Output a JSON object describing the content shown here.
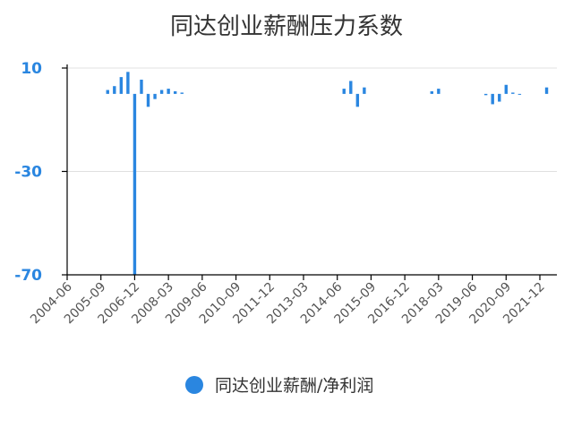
{
  "chart_data": {
    "type": "bar",
    "title": "同达创业薪酬压力系数",
    "xlabel": "",
    "ylabel": "",
    "ylim": [
      -70,
      10
    ],
    "yticks": [
      "10",
      "-30",
      "-70"
    ],
    "yticks_values": [
      10,
      -30,
      -70
    ],
    "xticks": [
      "2004-06",
      "2005-09",
      "2006-12",
      "2008-03",
      "2009-06",
      "2010-09",
      "2011-12",
      "2013-03",
      "2014-06",
      "2015-09",
      "2016-12",
      "2018-03",
      "2019-06",
      "2020-09",
      "2021-12"
    ],
    "grid": true,
    "legend_position": "bottom",
    "colors": {
      "series": "#2a86e0",
      "axis": "#000000",
      "grid": "#e0e0e0"
    },
    "series": [
      {
        "name": "同达创业薪酬/净利润",
        "x": [
          "2005-12",
          "2006-03",
          "2006-06",
          "2006-09",
          "2006-12",
          "2007-03",
          "2007-06",
          "2007-09",
          "2007-12",
          "2008-03",
          "2008-06",
          "2008-09",
          "2014-09",
          "2014-12",
          "2015-03",
          "2015-06",
          "2017-12",
          "2018-03",
          "2019-12",
          "2020-03",
          "2020-06",
          "2020-09",
          "2020-12",
          "2021-03",
          "2022-03"
        ],
        "values": [
          1.5,
          3.0,
          6.5,
          8.5,
          -70,
          5.5,
          -5.0,
          -2.0,
          1.5,
          2.0,
          1.0,
          0.5,
          2.0,
          5.0,
          -5.0,
          2.5,
          1.0,
          2.0,
          -0.5,
          -4.0,
          -3.0,
          3.5,
          0.5,
          0.0,
          2.5
        ]
      }
    ]
  }
}
